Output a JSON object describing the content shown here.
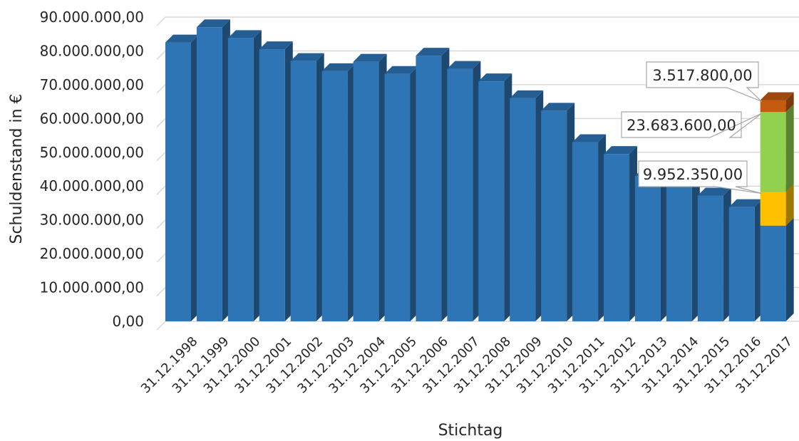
{
  "chart_data": {
    "type": "bar",
    "style": "3d-stacked-column",
    "title": "",
    "xlabel": "Stichtag",
    "ylabel": "Schuldenstand in €",
    "ylim": [
      0,
      90000000
    ],
    "ytick_labels": [
      "0,00",
      "10.000.000,00",
      "20.000.000,00",
      "30.000.000,00",
      "40.000.000,00",
      "50.000.000,00",
      "60.000.000,00",
      "70.000.000,00",
      "80.000.000,00",
      "90.000.000,00"
    ],
    "categories": [
      "31.12.1998",
      "31.12.1999",
      "31.12.2000",
      "31.12.2001",
      "31.12.2002",
      "31.12.2003",
      "31.12.2004",
      "31.12.2005",
      "31.12.2006",
      "31.12.2007",
      "31.12.2008",
      "31.12.2009",
      "31.12.2010",
      "31.12.2011",
      "31.12.2012",
      "31.12.2013",
      "31.12.2014",
      "31.12.2015",
      "31.12.2016",
      "31.12.2017"
    ],
    "series": [
      {
        "color": "#2E75B6",
        "values": [
          82500000,
          87000000,
          83800000,
          80500000,
          77000000,
          74000000,
          76800000,
          73200000,
          78600000,
          74700000,
          71000000,
          66000000,
          62300000,
          53000000,
          49500000,
          43000000,
          40500000,
          37200000,
          33800000,
          28300000
        ]
      },
      {
        "color": "#FFC000",
        "values": [
          0,
          0,
          0,
          0,
          0,
          0,
          0,
          0,
          0,
          0,
          0,
          0,
          0,
          0,
          0,
          0,
          0,
          0,
          0,
          9952350
        ]
      },
      {
        "color": "#92D050",
        "values": [
          0,
          0,
          0,
          0,
          0,
          0,
          0,
          0,
          0,
          0,
          0,
          0,
          0,
          0,
          0,
          0,
          0,
          0,
          0,
          23683600
        ]
      },
      {
        "color": "#C55A11",
        "values": [
          0,
          0,
          0,
          0,
          0,
          0,
          0,
          0,
          0,
          0,
          0,
          0,
          0,
          0,
          0,
          0,
          0,
          0,
          0,
          3517800
        ]
      }
    ],
    "data_labels": [
      "3.517.800,00",
      "23.683.600,00",
      "9.952.350,00"
    ],
    "grid": true,
    "legend": "none"
  }
}
